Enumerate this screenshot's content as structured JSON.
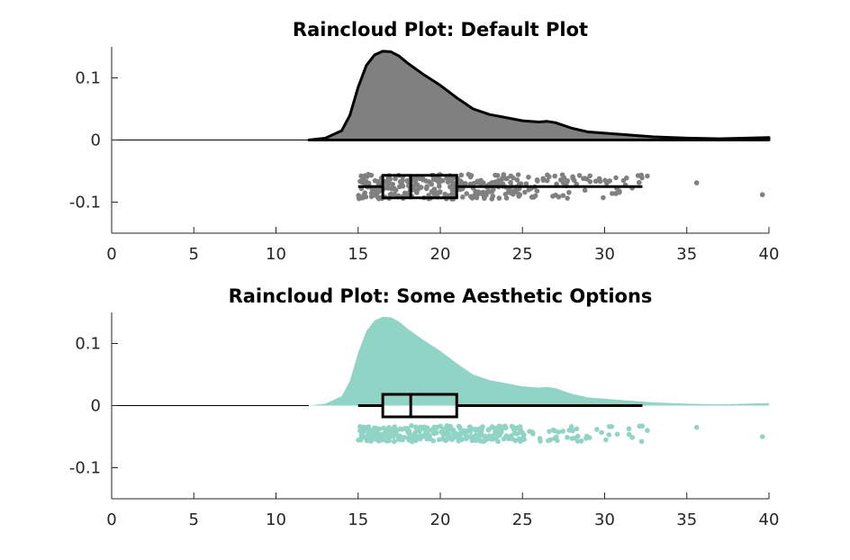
{
  "chart_data": [
    {
      "type": "raincloud",
      "title": "Raincloud Plot: Default Plot",
      "xlim": [
        0,
        40
      ],
      "ylim": [
        -0.15,
        0.15
      ],
      "xticks": [
        "0",
        "5",
        "10",
        "15",
        "20",
        "25",
        "30",
        "35",
        "40"
      ],
      "yticks": [
        "0.1",
        "0",
        "-0.1"
      ],
      "color": "#808080",
      "density": {
        "x": [
          12,
          13,
          14,
          14.5,
          15,
          15.5,
          16,
          16.5,
          17,
          17.5,
          18,
          19,
          20,
          21,
          22,
          23,
          24,
          25,
          26,
          26.5,
          27,
          28,
          29,
          30,
          31,
          32,
          33,
          35,
          37,
          40
        ],
        "y": [
          0,
          0.003,
          0.015,
          0.04,
          0.085,
          0.12,
          0.137,
          0.143,
          0.142,
          0.135,
          0.124,
          0.105,
          0.088,
          0.068,
          0.05,
          0.041,
          0.036,
          0.031,
          0.029,
          0.03,
          0.028,
          0.019,
          0.013,
          0.011,
          0.009,
          0.007,
          0.005,
          0.003,
          0.002,
          0.004
        ]
      },
      "boxplot": {
        "q1": 16.5,
        "median": 18.2,
        "q3": 21.0,
        "whisker_low": 15.0,
        "whisker_high": 32.3
      },
      "rain_band": [
        -0.095,
        -0.055
      ],
      "outliers": [
        [
          32.6,
          -0.058
        ],
        [
          35.6,
          -0.069
        ],
        [
          39.6,
          -0.088
        ]
      ]
    },
    {
      "type": "raincloud",
      "title": "Raincloud Plot: Some Aesthetic Options",
      "xlim": [
        0,
        40
      ],
      "ylim": [
        -0.15,
        0.15
      ],
      "xticks": [
        "0",
        "5",
        "10",
        "15",
        "20",
        "25",
        "30",
        "35",
        "40"
      ],
      "yticks": [
        "0.1",
        "0",
        "-0.1"
      ],
      "color": "#8fd4c5",
      "density": {
        "x": [
          12,
          13,
          14,
          14.5,
          15,
          15.5,
          16,
          16.5,
          17,
          17.5,
          18,
          19,
          20,
          21,
          22,
          23,
          24,
          25,
          26,
          26.5,
          27,
          28,
          29,
          30,
          31,
          32,
          33,
          35,
          37,
          40
        ],
        "y": [
          0,
          0.003,
          0.015,
          0.04,
          0.085,
          0.12,
          0.137,
          0.143,
          0.142,
          0.135,
          0.124,
          0.105,
          0.088,
          0.068,
          0.05,
          0.041,
          0.036,
          0.031,
          0.029,
          0.03,
          0.028,
          0.019,
          0.013,
          0.011,
          0.009,
          0.007,
          0.005,
          0.003,
          0.002,
          0.004
        ]
      },
      "boxplot": {
        "q1": 16.5,
        "median": 18.2,
        "q3": 21.0,
        "whisker_low": 15.0,
        "whisker_high": 32.3
      },
      "rain_band": [
        -0.058,
        -0.032
      ],
      "outliers": [
        [
          32.6,
          -0.04
        ],
        [
          35.6,
          -0.035
        ],
        [
          39.6,
          -0.05
        ]
      ]
    }
  ]
}
